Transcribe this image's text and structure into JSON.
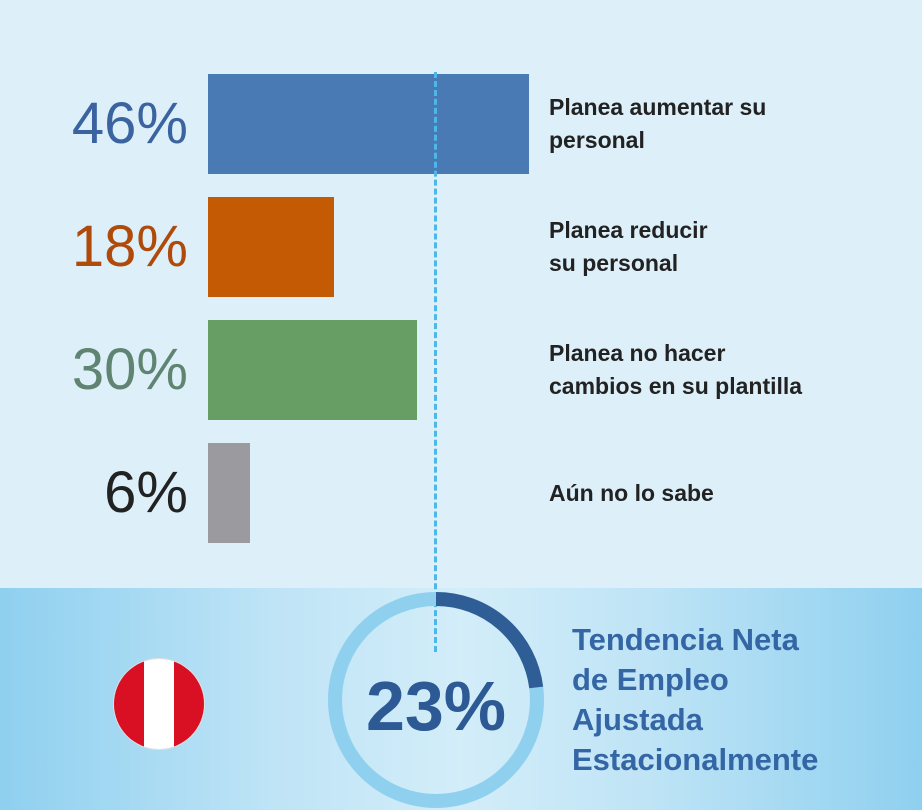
{
  "chart_data": {
    "type": "bar",
    "orientation": "horizontal",
    "categories": [
      "Planea aumentar su\npersonal",
      "Planea reducir\nsu personal",
      "Planea no hacer\ncambios en su plantilla",
      "Aún no lo sabe"
    ],
    "values": [
      46,
      18,
      30,
      6
    ],
    "value_labels": [
      "46%",
      "18%",
      "30%",
      "6%"
    ],
    "colors": [
      "#4a7ab4",
      "#c55a05",
      "#679e63",
      "#9b9b9f"
    ],
    "label_colors": [
      "#3a63a0",
      "#b04a0a",
      "#5f8572",
      "#222222"
    ],
    "xlim": [
      0,
      46
    ],
    "reference_value": 23
  },
  "summary": {
    "value": 23,
    "value_label": "23%",
    "title": "Tendencia Neta\nde Empleo\nAjustada\nEstacionalmente",
    "gauge_color": "#2f5d96",
    "gauge_track_color": "#8fd0ef"
  },
  "flag": {
    "icon": "peru-flag-icon",
    "colors": [
      "#d91023",
      "#ffffff",
      "#d91023"
    ]
  }
}
